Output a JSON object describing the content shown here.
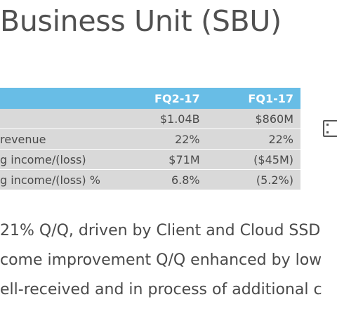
{
  "title": "Business Unit (SBU)",
  "table": {
    "headers": [
      "",
      "FQ2-17",
      "FQ1-17"
    ],
    "rows": [
      {
        "label": "",
        "fq2": "$1.04B",
        "fq1": "$860M"
      },
      {
        "label": "revenue",
        "fq2": "22%",
        "fq1": "22%"
      },
      {
        "label": "g income/(loss)",
        "fq2": "$71M",
        "fq1": "($45M)"
      },
      {
        "label": "g income/(loss) %",
        "fq2": "6.8%",
        "fq1": "(5.2%)"
      }
    ]
  },
  "icon": "slide-frame-icon",
  "bullets": [
    "21% Q/Q, driven by Client and Cloud SSD",
    "come improvement Q/Q enhanced by low",
    "ell-received and in process of additional c"
  ]
}
